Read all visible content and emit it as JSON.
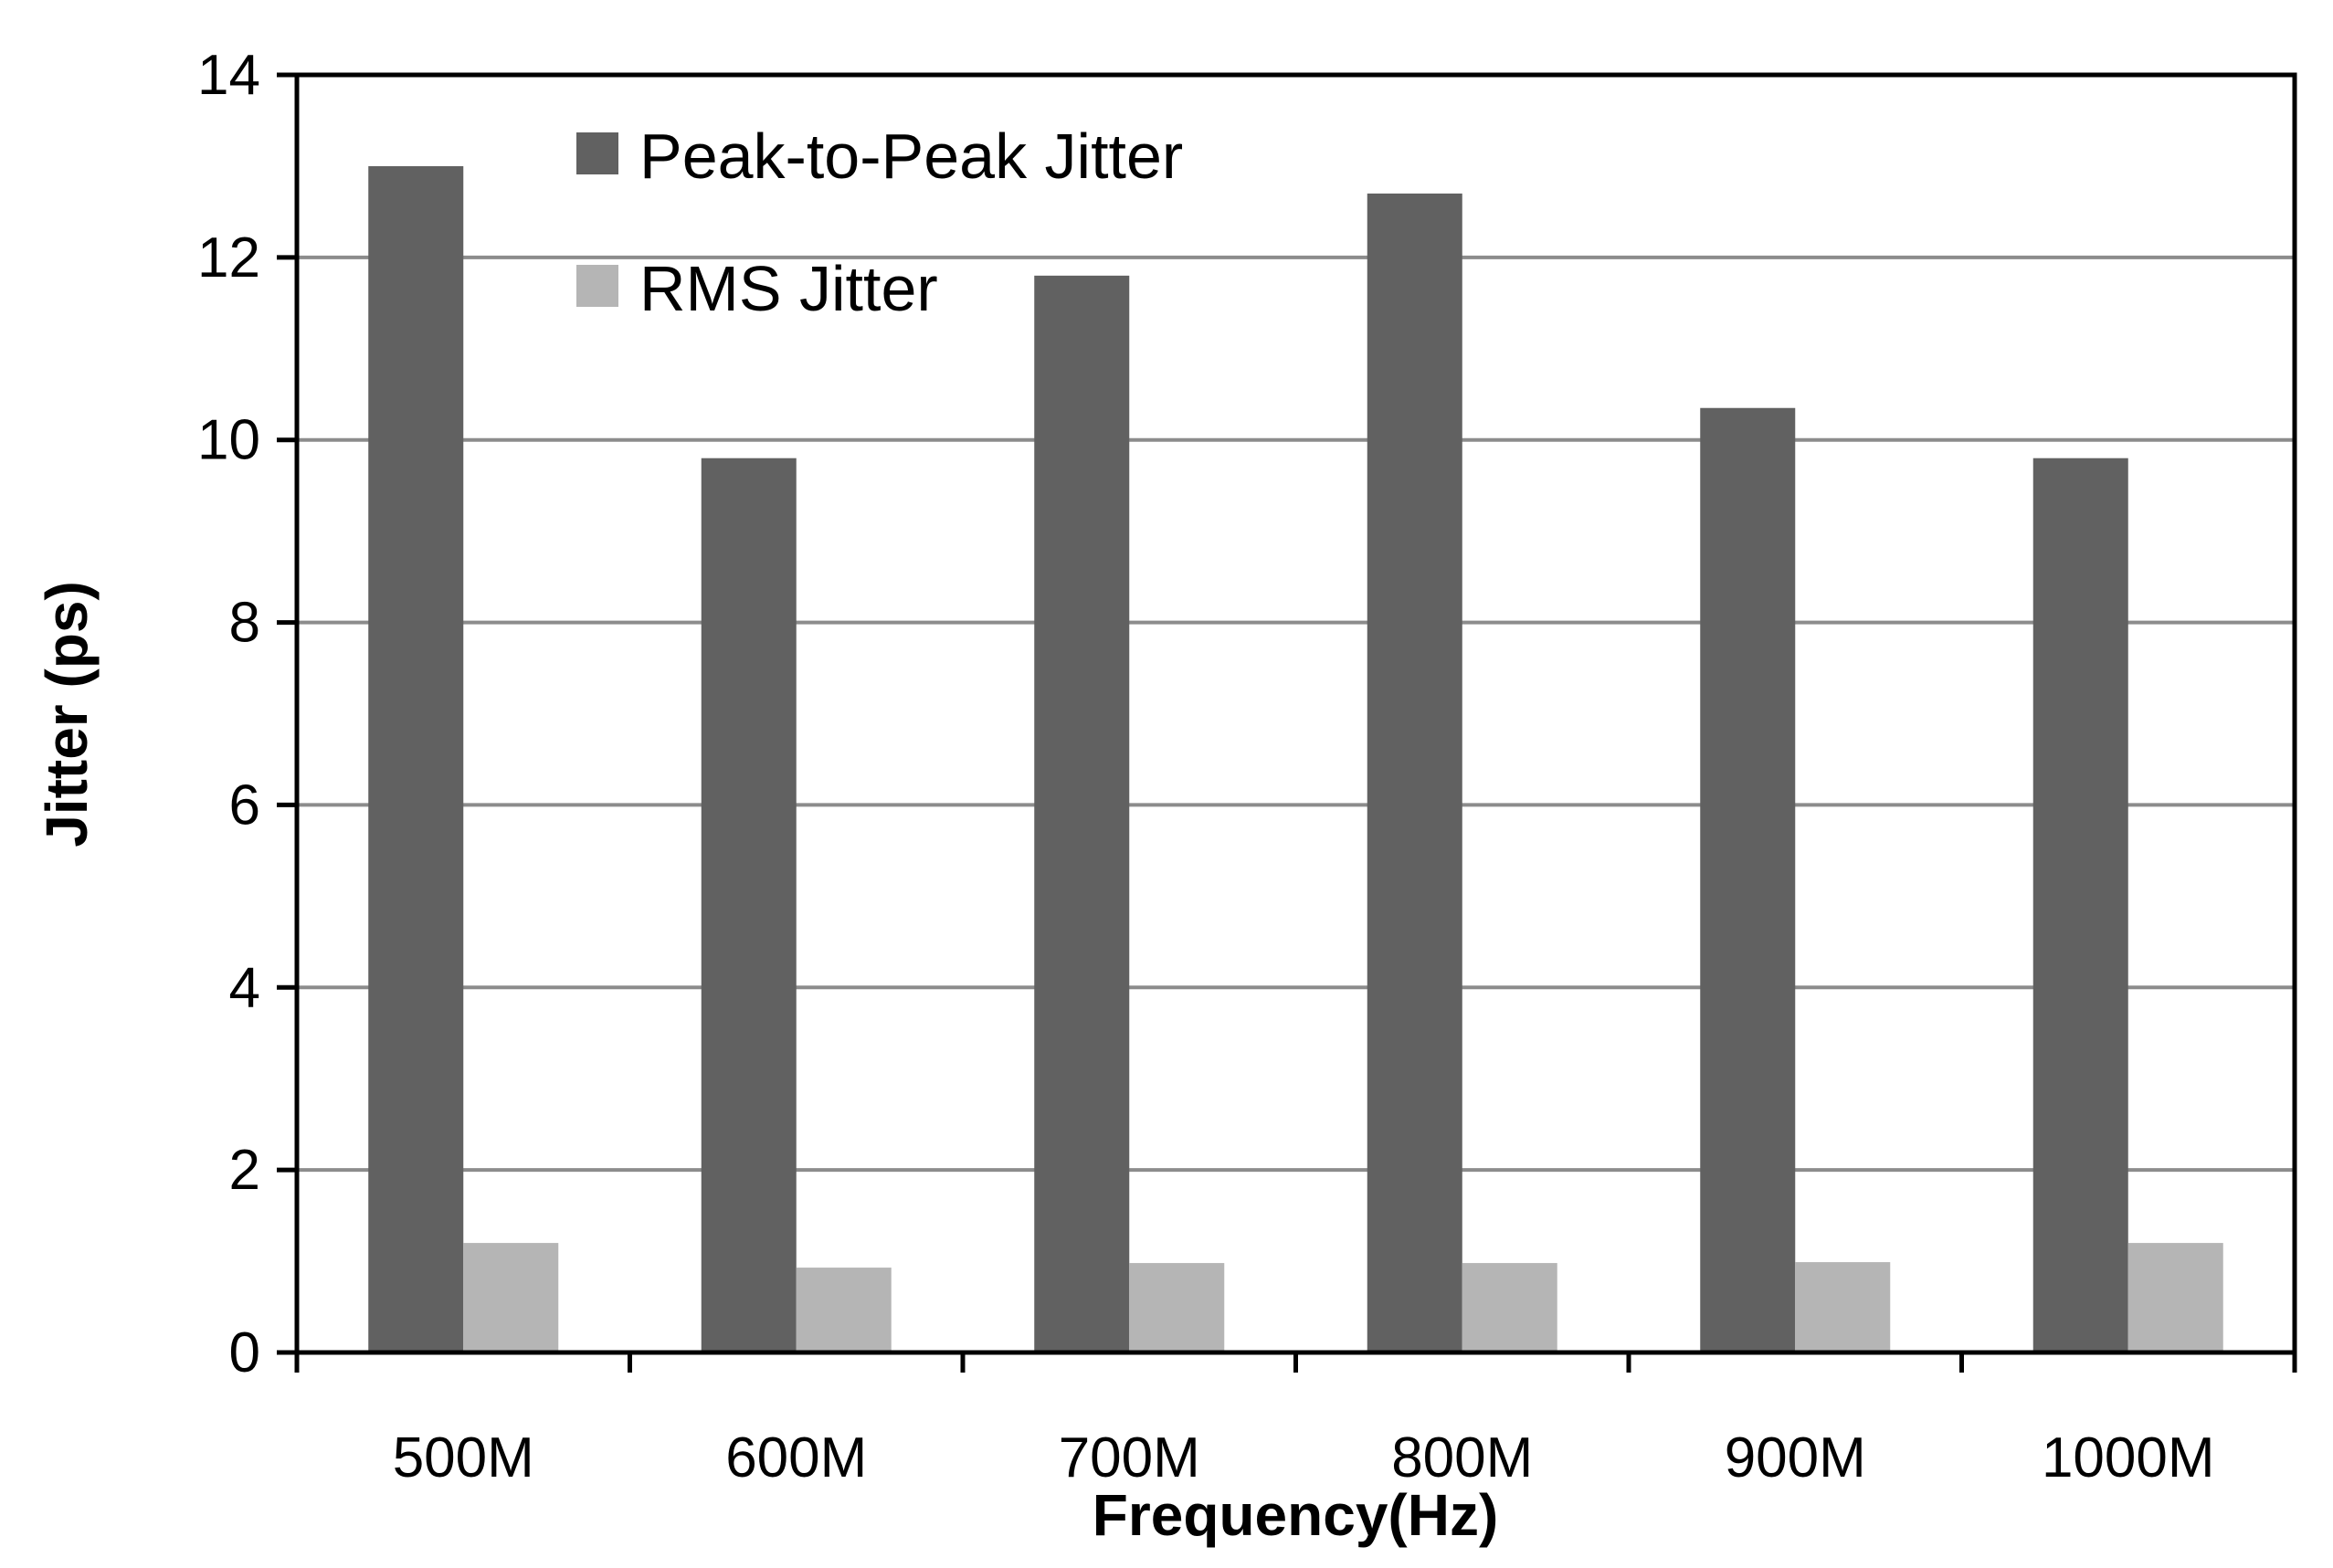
{
  "chart_data": {
    "type": "bar",
    "categories": [
      "500M",
      "600M",
      "700M",
      "800M",
      "900M",
      "1000M"
    ],
    "series": [
      {
        "name": "Peak-to-Peak Jitter",
        "values": [
          13.0,
          9.8,
          11.8,
          12.7,
          10.35,
          9.8
        ],
        "color": "#616161"
      },
      {
        "name": "RMS Jitter",
        "values": [
          1.2,
          0.93,
          0.98,
          0.98,
          0.99,
          1.2
        ],
        "color": "#b5b5b5"
      }
    ],
    "xlabel": "Frequency(Hz)",
    "ylabel": "Jitter (ps)",
    "ylim": [
      0,
      14
    ],
    "yticks": [
      0,
      2,
      4,
      6,
      8,
      10,
      12,
      14
    ],
    "grid": true,
    "legend_position": "top-left",
    "gridline_color": "#8c8c8c"
  }
}
